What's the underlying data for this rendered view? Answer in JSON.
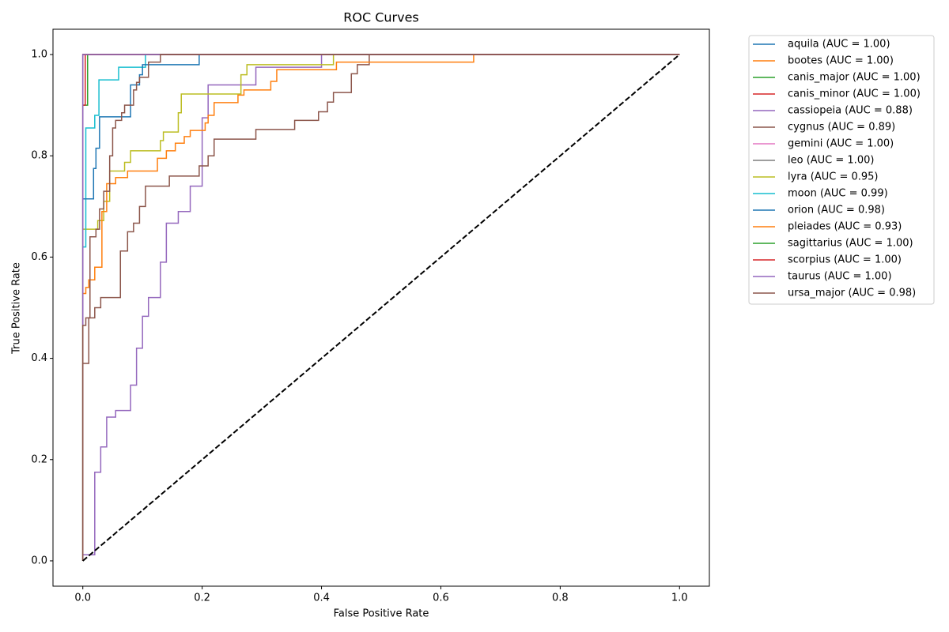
{
  "chart_data": {
    "type": "line",
    "title": "ROC Curves",
    "x_label": "False Positive Rate",
    "y_label": "True Positive Rate",
    "xlim": [
      -0.05,
      1.05
    ],
    "ylim": [
      -0.05,
      1.05
    ],
    "xticks": [
      {
        "value": 0,
        "label": "0.0"
      },
      {
        "value": 0.2,
        "label": "0.2"
      },
      {
        "value": 0.4,
        "label": "0.4"
      },
      {
        "value": 0.6,
        "label": "0.6"
      },
      {
        "value": 0.8,
        "label": "0.8"
      },
      {
        "value": 1,
        "label": "1.0"
      }
    ],
    "yticks": [
      {
        "value": 0,
        "label": "0.0"
      },
      {
        "value": 0.2,
        "label": "0.2"
      },
      {
        "value": 0.4,
        "label": "0.4"
      },
      {
        "value": 0.6,
        "label": "0.6"
      },
      {
        "value": 0.8,
        "label": "0.8"
      },
      {
        "value": 1,
        "label": "1.0"
      }
    ],
    "legend": "outside-upper-right",
    "series": [
      {
        "name": "aquila (AUC = 1.00)",
        "color": "#1f77b4",
        "x": [
          0,
          0,
          1
        ],
        "values": [
          0,
          1,
          1
        ]
      },
      {
        "name": "bootes (AUC = 1.00)",
        "color": "#ff7f0e",
        "x": [
          0,
          0,
          1
        ],
        "values": [
          0,
          1,
          1
        ]
      },
      {
        "name": "canis_major (AUC = 1.00)",
        "color": "#2ca02c",
        "x": [
          0,
          0,
          0.008,
          0.008,
          1
        ],
        "values": [
          0,
          0.9,
          0.9,
          1,
          1
        ]
      },
      {
        "name": "canis_minor (AUC = 1.00)",
        "color": "#d62728",
        "x": [
          0,
          0,
          0.004,
          0.004,
          1
        ],
        "values": [
          0,
          0.9,
          0.9,
          1,
          1
        ]
      },
      {
        "name": "cassiopeia (AUC = 0.88)",
        "color": "#9467bd",
        "x": [
          0,
          0,
          0.02,
          0.02,
          0.03,
          0.03,
          0.04,
          0.04,
          0.055,
          0.055,
          0.08,
          0.08,
          0.09,
          0.09,
          0.1,
          0.1,
          0.11,
          0.11,
          0.13,
          0.13,
          0.14,
          0.14,
          0.16,
          0.16,
          0.18,
          0.18,
          0.2,
          0.2,
          0.21,
          0.21,
          0.29,
          0.29,
          0.4,
          0.4,
          1
        ],
        "values": [
          0,
          0.012,
          0.012,
          0.175,
          0.175,
          0.225,
          0.225,
          0.284,
          0.284,
          0.297,
          0.297,
          0.347,
          0.347,
          0.42,
          0.42,
          0.483,
          0.483,
          0.52,
          0.52,
          0.59,
          0.59,
          0.667,
          0.667,
          0.69,
          0.69,
          0.74,
          0.74,
          0.875,
          0.875,
          0.94,
          0.94,
          0.975,
          0.975,
          1,
          1
        ]
      },
      {
        "name": "cygnus (AUC = 0.89)",
        "color": "#8c564b",
        "x": [
          0,
          0,
          0.01,
          0.01,
          0.02,
          0.02,
          0.03,
          0.03,
          0.063,
          0.063,
          0.075,
          0.075,
          0.085,
          0.085,
          0.095,
          0.095,
          0.105,
          0.105,
          0.145,
          0.145,
          0.195,
          0.195,
          0.21,
          0.21,
          0.22,
          0.22,
          0.29,
          0.29,
          0.355,
          0.355,
          0.395,
          0.395,
          0.41,
          0.41,
          0.42,
          0.42,
          0.45,
          0.45,
          0.46,
          0.46,
          0.48,
          0.48,
          1
        ],
        "values": [
          0,
          0.39,
          0.39,
          0.48,
          0.48,
          0.5,
          0.5,
          0.52,
          0.52,
          0.612,
          0.612,
          0.65,
          0.65,
          0.667,
          0.667,
          0.7,
          0.7,
          0.74,
          0.74,
          0.76,
          0.76,
          0.78,
          0.78,
          0.8,
          0.8,
          0.833,
          0.833,
          0.852,
          0.852,
          0.87,
          0.87,
          0.887,
          0.887,
          0.906,
          0.906,
          0.925,
          0.925,
          0.962,
          0.962,
          0.98,
          0.98,
          1,
          1
        ]
      },
      {
        "name": "gemini (AUC = 1.00)",
        "color": "#e377c2",
        "x": [
          0,
          0,
          1
        ],
        "values": [
          0,
          1,
          1
        ]
      },
      {
        "name": "leo (AUC = 1.00)",
        "color": "#7f7f7f",
        "x": [
          0,
          0,
          1
        ],
        "values": [
          0,
          1,
          1
        ]
      },
      {
        "name": "lyra (AUC = 0.95)",
        "color": "#bcbd22",
        "x": [
          0,
          0,
          0.025,
          0.025,
          0.035,
          0.035,
          0.045,
          0.045,
          0.07,
          0.07,
          0.08,
          0.08,
          0.13,
          0.13,
          0.135,
          0.135,
          0.16,
          0.16,
          0.165,
          0.165,
          0.265,
          0.265,
          0.275,
          0.275,
          0.42,
          0.42,
          1
        ],
        "values": [
          0,
          0.655,
          0.655,
          0.672,
          0.672,
          0.71,
          0.71,
          0.77,
          0.77,
          0.787,
          0.787,
          0.81,
          0.81,
          0.83,
          0.83,
          0.847,
          0.847,
          0.885,
          0.885,
          0.922,
          0.922,
          0.96,
          0.96,
          0.98,
          0.98,
          1,
          1
        ]
      },
      {
        "name": "moon (AUC = 0.99)",
        "color": "#17becf",
        "x": [
          0,
          0,
          0.005,
          0.005,
          0.02,
          0.02,
          0.027,
          0.027,
          0.06,
          0.06,
          0.105,
          0.105,
          1
        ],
        "values": [
          0,
          0.62,
          0.62,
          0.855,
          0.855,
          0.88,
          0.88,
          0.95,
          0.95,
          0.975,
          0.975,
          1,
          1
        ]
      },
      {
        "name": "orion (AUC = 0.98)",
        "color": "#1f77b4",
        "x": [
          0,
          0,
          0.018,
          0.018,
          0.022,
          0.022,
          0.028,
          0.028,
          0.08,
          0.08,
          0.095,
          0.095,
          0.1,
          0.1,
          0.195,
          0.195,
          1
        ],
        "values": [
          0,
          0.715,
          0.715,
          0.775,
          0.775,
          0.815,
          0.815,
          0.877,
          0.877,
          0.94,
          0.94,
          0.96,
          0.96,
          0.98,
          0.98,
          1,
          1
        ]
      },
      {
        "name": "pleiades (AUC = 0.93)",
        "color": "#ff7f0e",
        "x": [
          0,
          0,
          0.005,
          0.005,
          0.01,
          0.01,
          0.02,
          0.02,
          0.032,
          0.032,
          0.04,
          0.04,
          0.055,
          0.055,
          0.075,
          0.075,
          0.125,
          0.125,
          0.14,
          0.14,
          0.155,
          0.155,
          0.17,
          0.17,
          0.18,
          0.18,
          0.205,
          0.205,
          0.21,
          0.21,
          0.22,
          0.22,
          0.26,
          0.26,
          0.27,
          0.27,
          0.315,
          0.315,
          0.325,
          0.325,
          0.425,
          0.425,
          0.655,
          0.655,
          1
        ],
        "values": [
          0,
          0.528,
          0.528,
          0.54,
          0.54,
          0.555,
          0.555,
          0.58,
          0.58,
          0.69,
          0.69,
          0.745,
          0.745,
          0.757,
          0.757,
          0.77,
          0.77,
          0.795,
          0.795,
          0.81,
          0.81,
          0.825,
          0.825,
          0.838,
          0.838,
          0.85,
          0.85,
          0.865,
          0.865,
          0.88,
          0.88,
          0.905,
          0.905,
          0.92,
          0.92,
          0.93,
          0.93,
          0.947,
          0.947,
          0.97,
          0.97,
          0.985,
          0.985,
          1,
          1
        ]
      },
      {
        "name": "sagittarius (AUC = 1.00)",
        "color": "#2ca02c",
        "x": [
          0,
          0,
          1
        ],
        "values": [
          0,
          1,
          1
        ]
      },
      {
        "name": "scorpius (AUC = 1.00)",
        "color": "#d62728",
        "x": [
          0,
          0,
          1
        ],
        "values": [
          0,
          1,
          1
        ]
      },
      {
        "name": "taurus (AUC = 1.00)",
        "color": "#9467bd",
        "x": [
          0,
          0,
          1
        ],
        "values": [
          0,
          1,
          1
        ]
      },
      {
        "name": "ursa_major (AUC = 0.98)",
        "color": "#8c564b",
        "x": [
          0,
          0,
          0.005,
          0.005,
          0.012,
          0.012,
          0.022,
          0.022,
          0.028,
          0.028,
          0.035,
          0.035,
          0.045,
          0.045,
          0.05,
          0.05,
          0.055,
          0.055,
          0.065,
          0.065,
          0.07,
          0.07,
          0.085,
          0.085,
          0.09,
          0.09,
          0.095,
          0.095,
          0.11,
          0.11,
          0.13,
          0.13,
          1
        ],
        "values": [
          0,
          0.465,
          0.465,
          0.48,
          0.48,
          0.64,
          0.64,
          0.655,
          0.655,
          0.695,
          0.695,
          0.73,
          0.73,
          0.8,
          0.8,
          0.855,
          0.855,
          0.87,
          0.87,
          0.885,
          0.885,
          0.9,
          0.9,
          0.93,
          0.93,
          0.945,
          0.945,
          0.955,
          0.955,
          0.985,
          0.985,
          1,
          1
        ]
      },
      {
        "color": "#000000",
        "dashed": true,
        "x": [
          0,
          1
        ],
        "values": [
          0,
          1
        ]
      }
    ]
  }
}
